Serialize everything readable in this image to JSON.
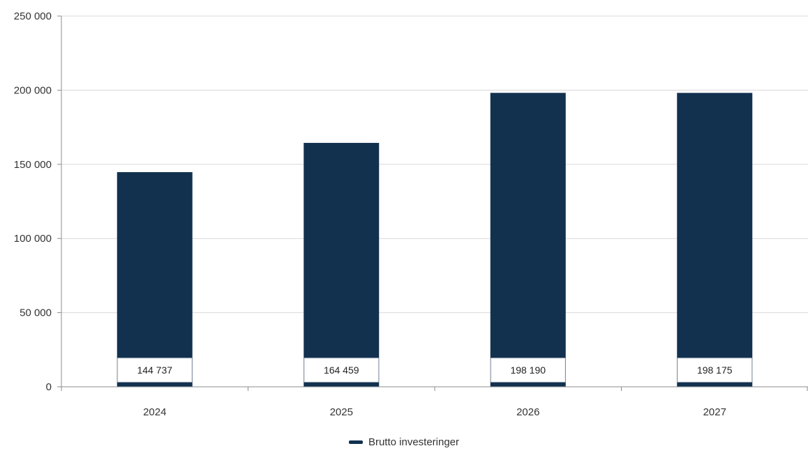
{
  "chart_data": {
    "type": "bar",
    "categories": [
      "2024",
      "2025",
      "2026",
      "2027"
    ],
    "series": [
      {
        "name": "Brutto investeringer",
        "values": [
          144737,
          164459,
          198190,
          198175
        ]
      }
    ],
    "data_labels": [
      "144 737",
      "164 459",
      "198 190",
      "198 175"
    ],
    "y_ticks": [
      0,
      50000,
      100000,
      150000,
      200000,
      250000
    ],
    "y_tick_labels": [
      "0",
      "50 000",
      "100 000",
      "150 000",
      "200 000",
      "250 000"
    ],
    "ylim": [
      0,
      250000
    ],
    "grid": true,
    "legend": "bottom-center",
    "colors": {
      "bar": "#12314f",
      "grid": "#d9d9d9",
      "axis": "#8c8c8c"
    }
  }
}
